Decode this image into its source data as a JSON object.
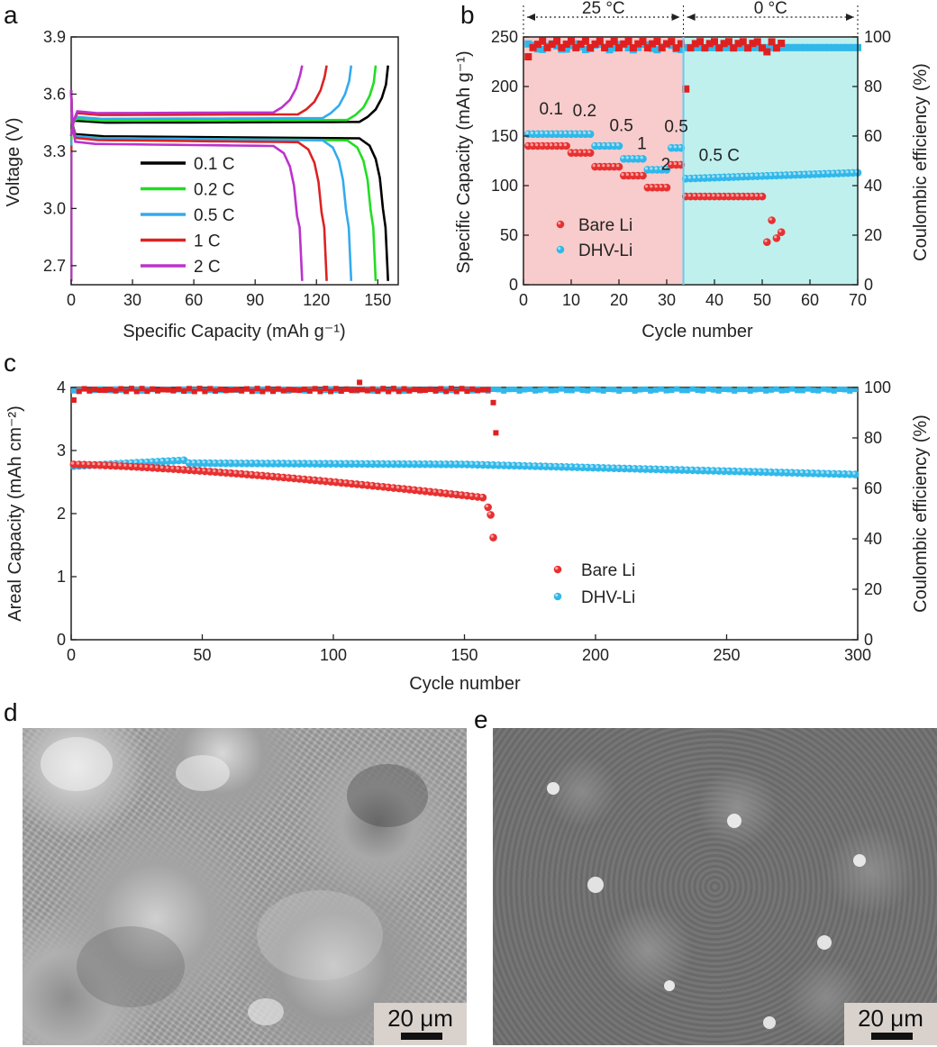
{
  "panels": {
    "a": "a",
    "b": "b",
    "c": "c",
    "d": "d",
    "e": "e"
  },
  "chart_data": [
    {
      "id": "a",
      "type": "line",
      "title": "",
      "xlabel": "Specific Capacity (mAh g⁻¹)",
      "ylabel": "Voltage (V)",
      "xlim": [
        0,
        160
      ],
      "ylim": [
        2.6,
        3.9
      ],
      "xticks": [
        "0",
        "30",
        "60",
        "90",
        "120",
        "150"
      ],
      "yticks": [
        "2.7",
        "3.0",
        "3.3",
        "3.6",
        "3.9"
      ],
      "legend": [
        "0.1 C",
        "0.2 C",
        "0.5 C",
        "1 C",
        "2 C"
      ],
      "series": [
        {
          "name": "0.1 C",
          "color": "#000000",
          "capacity": 155,
          "charge_plateau": 3.45,
          "discharge_plateau": 3.38
        },
        {
          "name": "0.2 C",
          "color": "#22dd22",
          "capacity": 149,
          "charge_plateau": 3.46,
          "discharge_plateau": 3.37
        },
        {
          "name": "0.5 C",
          "color": "#33aaee",
          "capacity": 137,
          "charge_plateau": 3.47,
          "discharge_plateau": 3.37
        },
        {
          "name": "1 C",
          "color": "#dd2222",
          "capacity": 125,
          "charge_plateau": 3.49,
          "discharge_plateau": 3.36
        },
        {
          "name": "2 C",
          "color": "#bb33cc",
          "capacity": 113,
          "charge_plateau": 3.5,
          "discharge_plateau": 3.34
        }
      ]
    },
    {
      "id": "b",
      "type": "scatter",
      "xlabel": "Cycle number",
      "ylabel": "Specific Capacity (mAh g⁻¹)",
      "ylabel_right": "Coulombic efficiency (%)",
      "xlim": [
        0,
        70
      ],
      "ylim": [
        0,
        250
      ],
      "ylim_right": [
        0,
        100
      ],
      "xticks": [
        "0",
        "10",
        "20",
        "30",
        "40",
        "50",
        "60",
        "70"
      ],
      "yticks": [
        "0",
        "50",
        "100",
        "150",
        "200",
        "250"
      ],
      "yticks_right": [
        "0",
        "20",
        "40",
        "60",
        "80",
        "100"
      ],
      "regions": [
        {
          "label": "25 °C",
          "from": 0,
          "to": 33.5,
          "color": "#f8cccc"
        },
        {
          "label": "0 °C",
          "from": 33.5,
          "to": 70,
          "color": "#bff0ee"
        }
      ],
      "rate_labels": [
        "0.1",
        "0.2",
        "0.5",
        "1",
        "2",
        "0.5",
        "0.5 C"
      ],
      "legend": [
        "Bare Li",
        "DHV-Li"
      ],
      "series": [
        {
          "name": "Bare Li capacity",
          "color": "#e83030",
          "segments": [
            {
              "from": 1,
              "to": 9,
              "value": 140
            },
            {
              "from": 10,
              "to": 14,
              "value": 133
            },
            {
              "from": 15,
              "to": 20,
              "value": 119
            },
            {
              "from": 21,
              "to": 25,
              "value": 110
            },
            {
              "from": 26,
              "to": 30,
              "value": 98
            },
            {
              "from": 31,
              "to": 33,
              "value": 121
            },
            {
              "from": 34,
              "to": 50,
              "value": 89
            }
          ]
        },
        {
          "name": "Bare Li tail",
          "color": "#e83030",
          "x": [
            51,
            52,
            53,
            54
          ],
          "values": [
            43,
            65,
            47,
            53
          ]
        },
        {
          "name": "DHV-Li capacity",
          "color": "#30b8ea",
          "segments": [
            {
              "from": 1,
              "to": 9,
              "value": 152
            },
            {
              "from": 10,
              "to": 14,
              "value": 152
            },
            {
              "from": 15,
              "to": 20,
              "value": 140
            },
            {
              "from": 21,
              "to": 25,
              "value": 127
            },
            {
              "from": 26,
              "to": 30,
              "value": 116
            },
            {
              "from": 31,
              "to": 33,
              "value": 138
            },
            {
              "from": 34,
              "to": 70,
              "value_start": 107,
              "value_end": 113
            }
          ]
        },
        {
          "name": "Bare Li CE",
          "color": "#e02020",
          "marker": "square",
          "value": 97,
          "dip_cycle": 34,
          "dip_value": 79
        },
        {
          "name": "DHV-Li CE",
          "color": "#30b8ea",
          "marker": "square",
          "value": 96
        }
      ]
    },
    {
      "id": "c",
      "type": "scatter",
      "xlabel": "Cycle number",
      "ylabel": "Areal Capacity (mAh cm⁻²)",
      "ylabel_right": "Coulombic efficiency (%)",
      "xlim": [
        0,
        300
      ],
      "ylim": [
        0,
        4
      ],
      "ylim_right": [
        0,
        100
      ],
      "xticks": [
        "0",
        "50",
        "100",
        "150",
        "200",
        "250",
        "300"
      ],
      "yticks": [
        "0",
        "1",
        "2",
        "3",
        "4"
      ],
      "yticks_right": [
        "0",
        "20",
        "40",
        "60",
        "80",
        "100"
      ],
      "legend": [
        "Bare Li",
        "DHV-Li"
      ],
      "series": [
        {
          "name": "Bare Li capacity",
          "color": "#e83030",
          "x_end": 161,
          "start": 2.78,
          "end": 2.25,
          "tail": [
            2.1,
            1.98,
            1.62
          ]
        },
        {
          "name": "DHV-Li capacity",
          "color": "#30b8ea",
          "x_end": 299,
          "start": 2.75,
          "mid": 2.8,
          "end": 2.62
        },
        {
          "name": "Bare Li CE",
          "color": "#e02020",
          "marker": "square",
          "value": 99,
          "drop": [
            94,
            82
          ]
        },
        {
          "name": "DHV-Li CE",
          "color": "#30b8ea",
          "marker": "square",
          "value": 99
        }
      ]
    }
  ],
  "images": {
    "d": {
      "scale_bar": "20 μm"
    },
    "e": {
      "scale_bar": "20 μm"
    }
  }
}
